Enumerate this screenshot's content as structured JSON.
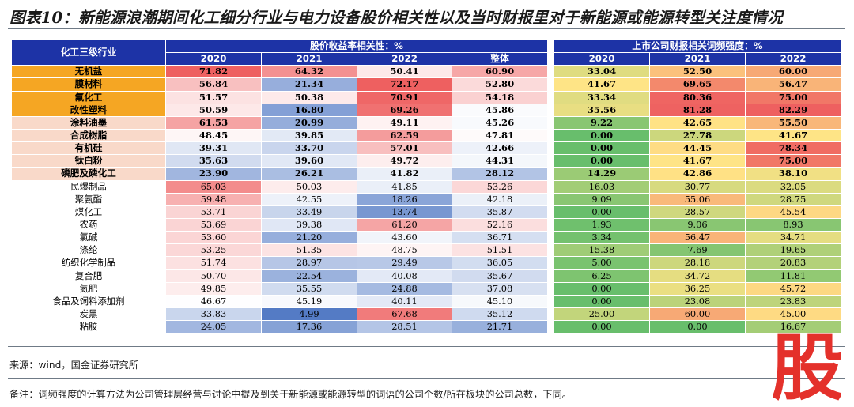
{
  "title": "图表10：新能源浪潮期间化工细分行业与电力设备股价相关性以及当时财报里对于新能源或能源转型关注度情况",
  "table": {
    "industry_header": "化工三级行业",
    "group1_header": "股价收益率相关性：%",
    "group2_header": "上市公司财报相关词频强度：%",
    "group1_cols": [
      "2020",
      "2021",
      "2022",
      "整体"
    ],
    "group2_cols": [
      "2020",
      "2021",
      "2022"
    ],
    "rows": [
      {
        "name": "无机盐",
        "bold": true,
        "name_color": "#f5a623",
        "corr": [
          "71.82",
          "64.32",
          "50.41",
          "60.90"
        ],
        "freq": [
          "33.04",
          "52.50",
          "60.00"
        ]
      },
      {
        "name": "膜材料",
        "bold": true,
        "name_color": "#f5a623",
        "corr": [
          "56.84",
          "21.34",
          "72.17",
          "52.80"
        ],
        "freq": [
          "41.67",
          "69.65",
          "56.47"
        ]
      },
      {
        "name": "氟化工",
        "bold": true,
        "name_color": "#f5a623",
        "corr": [
          "51.57",
          "50.38",
          "70.91",
          "54.18"
        ],
        "freq": [
          "33.34",
          "80.36",
          "75.00"
        ]
      },
      {
        "name": "改性塑料",
        "bold": true,
        "name_color": "#f5a623",
        "corr": [
          "50.59",
          "16.80",
          "69.26",
          "45.86"
        ],
        "freq": [
          "35.56",
          "81.28",
          "82.29"
        ]
      },
      {
        "name": "涂料油墨",
        "bold": true,
        "name_color": "#f9d9c9",
        "corr": [
          "61.53",
          "20.99",
          "49.11",
          "45.26"
        ],
        "freq": [
          "9.22",
          "42.65",
          "55.50"
        ]
      },
      {
        "name": "合成树脂",
        "bold": true,
        "name_color": "#f9d9c9",
        "corr": [
          "48.45",
          "39.85",
          "62.59",
          "47.81"
        ],
        "freq": [
          "0.00",
          "27.78",
          "41.67"
        ]
      },
      {
        "name": "有机硅",
        "bold": true,
        "name_color": "#f9d9c9",
        "corr": [
          "39.31",
          "33.70",
          "57.01",
          "42.66"
        ],
        "freq": [
          "0.00",
          "44.45",
          "78.34"
        ]
      },
      {
        "name": "钛白粉",
        "bold": true,
        "name_color": "#f9d9c9",
        "corr": [
          "35.63",
          "39.60",
          "49.72",
          "44.31"
        ],
        "freq": [
          "0.00",
          "41.67",
          "75.00"
        ]
      },
      {
        "name": "磷肥及磷化工",
        "bold": true,
        "name_color": "#f9d9c9",
        "corr": [
          "23.90",
          "26.21",
          "41.82",
          "28.12"
        ],
        "freq": [
          "14.29",
          "42.86",
          "38.10"
        ]
      },
      {
        "name": "民爆制品",
        "bold": false,
        "name_color": "#ffffff",
        "corr": [
          "65.03",
          "50.03",
          "41.85",
          "53.26"
        ],
        "freq": [
          "16.03",
          "30.77",
          "32.05"
        ]
      },
      {
        "name": "聚氨酯",
        "bold": false,
        "name_color": "#ffffff",
        "corr": [
          "59.48",
          "42.55",
          "18.26",
          "42.18"
        ],
        "freq": [
          "9.09",
          "55.06",
          "28.75"
        ]
      },
      {
        "name": "煤化工",
        "bold": false,
        "name_color": "#ffffff",
        "corr": [
          "53.71",
          "33.49",
          "13.74",
          "35.87"
        ],
        "freq": [
          "0.00",
          "28.57",
          "45.54"
        ]
      },
      {
        "name": "农药",
        "bold": false,
        "name_color": "#ffffff",
        "corr": [
          "53.69",
          "39.38",
          "61.20",
          "52.16"
        ],
        "freq": [
          "1.93",
          "9.06",
          "8.93"
        ]
      },
      {
        "name": "氯碱",
        "bold": false,
        "name_color": "#ffffff",
        "corr": [
          "53.60",
          "21.20",
          "43.60",
          "36.71"
        ],
        "freq": [
          "3.34",
          "56.47",
          "34.71"
        ]
      },
      {
        "name": "涤纶",
        "bold": false,
        "name_color": "#ffffff",
        "corr": [
          "53.25",
          "51.35",
          "48.75",
          "51.51"
        ],
        "freq": [
          "15.38",
          "7.69",
          "19.65"
        ]
      },
      {
        "name": "纺织化学制品",
        "bold": false,
        "name_color": "#ffffff",
        "corr": [
          "51.74",
          "28.97",
          "29.49",
          "36.05"
        ],
        "freq": [
          "5.00",
          "28.18",
          "20.83"
        ]
      },
      {
        "name": "复合肥",
        "bold": false,
        "name_color": "#ffffff",
        "corr": [
          "50.70",
          "22.54",
          "40.08",
          "35.67"
        ],
        "freq": [
          "6.25",
          "34.72",
          "11.81"
        ]
      },
      {
        "name": "氮肥",
        "bold": false,
        "name_color": "#ffffff",
        "corr": [
          "49.85",
          "35.55",
          "24.88",
          "37.08"
        ],
        "freq": [
          "0.00",
          "36.25",
          "45.72"
        ]
      },
      {
        "name": "食品及饲料添加剂",
        "bold": false,
        "name_color": "#ffffff",
        "corr": [
          "46.67",
          "45.19",
          "40.11",
          "45.10"
        ],
        "freq": [
          "0.00",
          "23.08",
          "23.83"
        ]
      },
      {
        "name": "炭黑",
        "bold": false,
        "name_color": "#ffffff",
        "corr": [
          "33.83",
          "4.99",
          "67.68",
          "35.12"
        ],
        "freq": [
          "25.00",
          "60.00",
          "45.00"
        ]
      },
      {
        "name": "粘胶",
        "bold": false,
        "name_color": "#ffffff",
        "corr": [
          "24.05",
          "17.36",
          "28.51",
          "21.71"
        ],
        "freq": [
          "0.00",
          "0.00",
          "16.67"
        ]
      }
    ]
  },
  "source": "来源：wind，国金证券研究所",
  "footnote": "备注：词频强度的计算方法为公司管理层经营与讨论中提及到关于新能源或能源转型的词语的公司个数/所在板块的公司总数，下同。",
  "watermark_glyph": "股",
  "colors": {
    "header_blue": "#1d33a6",
    "title_rule": "#6f7a86",
    "watermark_red": "#e4312b"
  }
}
